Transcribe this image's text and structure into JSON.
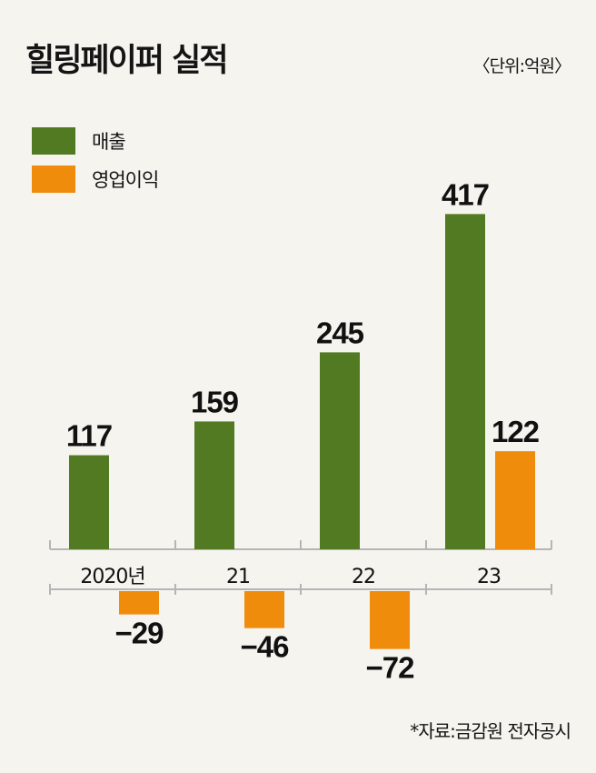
{
  "title": "힐링페이퍼 실적",
  "unit": "〈단위:억원〉",
  "source": "*자료:금감원 전자공시",
  "colors": {
    "revenue": "#527a23",
    "operating_profit": "#f08c0c",
    "axis": "#b5b5b5",
    "background": "#f5f4ef"
  },
  "chart_data": {
    "type": "bar",
    "categories": [
      "2020년",
      "21",
      "22",
      "23"
    ],
    "series": [
      {
        "name": "매출",
        "values": [
          117,
          159,
          245,
          417
        ]
      },
      {
        "name": "영업이익",
        "values": [
          -29,
          -46,
          -72,
          122
        ]
      }
    ],
    "value_labels": [
      [
        "117",
        "159",
        "245",
        "417"
      ],
      [
        "−29",
        "−46",
        "−72",
        "122"
      ]
    ],
    "ylabel": "",
    "xlabel": "",
    "grid": false,
    "legend_position": "top-left"
  }
}
